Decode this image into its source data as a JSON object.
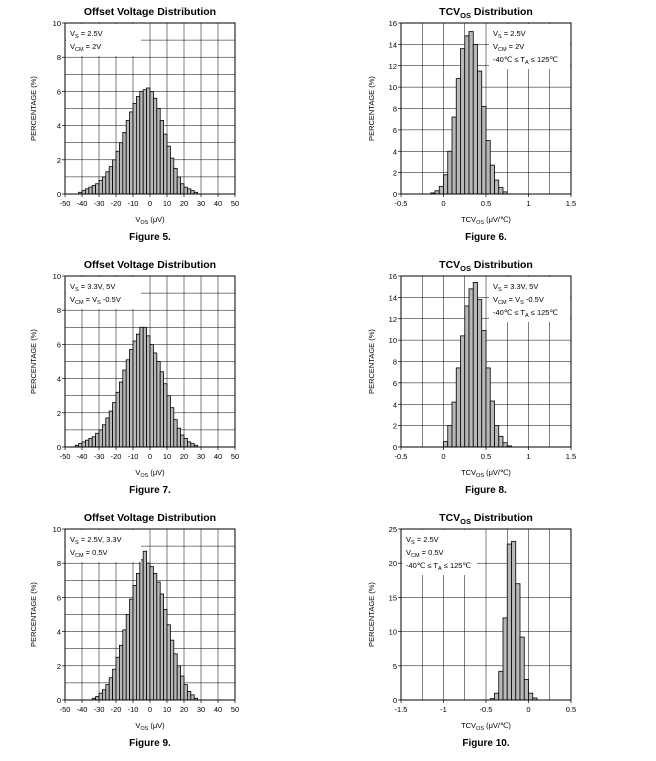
{
  "chart_data": [
    {
      "type": "bar",
      "title": "Offset Voltage Distribution",
      "title_sub": "",
      "figure": "Figure 5.",
      "xlabel": "V",
      "xlabel_sub": "OS",
      "xlabel_unit": " (μV)",
      "ylabel": "PERCENTAGE (%)",
      "xlim": [
        -50,
        50
      ],
      "ylim": [
        0,
        10
      ],
      "xticks": [
        -50,
        -40,
        -30,
        -20,
        -10,
        0,
        10,
        20,
        30,
        40,
        50
      ],
      "xtick_labels": [
        "-50",
        "-40",
        "-30",
        "-20",
        "-10",
        "0",
        "10",
        "20",
        "30",
        "40",
        "50"
      ],
      "yticks": [
        0,
        2,
        4,
        6,
        8,
        10
      ],
      "ytick_labels": [
        "0",
        "2",
        "4",
        "6",
        "8",
        "10"
      ],
      "grid_x_step": 10,
      "grid_y_step": 1,
      "bin_start": -42,
      "bin_width": 2,
      "values": [
        0.1,
        0.2,
        0.3,
        0.4,
        0.5,
        0.6,
        0.8,
        1.0,
        1.3,
        1.6,
        2.0,
        2.5,
        3.0,
        3.6,
        4.3,
        4.8,
        5.3,
        5.7,
        6.0,
        6.1,
        6.2,
        6.0,
        5.6,
        5.0,
        4.3,
        3.5,
        2.8,
        2.1,
        1.5,
        1.0,
        0.6,
        0.4,
        0.3,
        0.2,
        0.1
      ],
      "legend_position": "top-left",
      "legend": [
        {
          "main": "V",
          "sub": "S",
          "rest": " = 2.5V"
        },
        {
          "main": "V",
          "sub": "CM",
          "rest": " = 2V"
        }
      ]
    },
    {
      "type": "bar",
      "title": "TCV",
      "title_sub": "OS",
      "title_rest": " Distribution",
      "figure": "Figure 6.",
      "xlabel": "TCV",
      "xlabel_sub": "OS",
      "xlabel_unit": " (μV/℃)",
      "ylabel": "PERCENTAGE (%)",
      "xlim": [
        -0.5,
        1.5
      ],
      "ylim": [
        0,
        16
      ],
      "xticks": [
        -0.5,
        0,
        0.5,
        1,
        1.5
      ],
      "xtick_labels": [
        "-0.5",
        "0",
        "0.5",
        "1",
        "1.5"
      ],
      "yticks": [
        0,
        2,
        4,
        6,
        8,
        10,
        12,
        14,
        16
      ],
      "ytick_labels": [
        "0",
        "2",
        "4",
        "6",
        "8",
        "10",
        "12",
        "14",
        "16"
      ],
      "grid_x_step": 0.25,
      "grid_y_step": 2,
      "bin_start": -0.15,
      "bin_width": 0.05,
      "values": [
        0.1,
        0.3,
        0.7,
        1.8,
        4.0,
        7.2,
        10.8,
        13.6,
        14.8,
        15.2,
        14.0,
        11.5,
        8.2,
        5.0,
        2.7,
        1.3,
        0.6,
        0.2
      ],
      "legend_position": "top-right",
      "legend": [
        {
          "main": "V",
          "sub": "S",
          "rest": " = 2.5V"
        },
        {
          "main": "V",
          "sub": "CM",
          "rest": " = 2V"
        },
        {
          "main": "-40℃ ≤ T",
          "sub": "A",
          "rest": " ≤ 125℃"
        }
      ]
    },
    {
      "type": "bar",
      "title": "Offset Voltage Distribution",
      "title_sub": "",
      "figure": "Figure 7.",
      "xlabel": "V",
      "xlabel_sub": "OS",
      "xlabel_unit": " (μV)",
      "ylabel": "PERCENTAGE (%)",
      "xlim": [
        -50,
        50
      ],
      "ylim": [
        0,
        10
      ],
      "xticks": [
        -50,
        -40,
        -30,
        -20,
        -10,
        0,
        10,
        20,
        30,
        40,
        50
      ],
      "xtick_labels": [
        "-50",
        "-40",
        "-30",
        "-20",
        "-10",
        "0",
        "10",
        "20",
        "30",
        "40",
        "50"
      ],
      "yticks": [
        0,
        2,
        4,
        6,
        8,
        10
      ],
      "ytick_labels": [
        "0",
        "2",
        "4",
        "6",
        "8",
        "10"
      ],
      "grid_x_step": 10,
      "grid_y_step": 1,
      "bin_start": -44,
      "bin_width": 2,
      "values": [
        0.1,
        0.2,
        0.3,
        0.4,
        0.5,
        0.6,
        0.8,
        1.0,
        1.3,
        1.7,
        2.1,
        2.6,
        3.2,
        3.8,
        4.5,
        5.1,
        5.7,
        6.2,
        6.6,
        7.0,
        7.0,
        6.5,
        6.0,
        5.5,
        5.0,
        4.4,
        3.7,
        3.0,
        2.3,
        1.6,
        1.1,
        0.7,
        0.5,
        0.3,
        0.2,
        0.1
      ],
      "legend_position": "top-left",
      "legend": [
        {
          "main": "V",
          "sub": "S",
          "rest": " = 3.3V, 5V"
        },
        {
          "main": "V",
          "sub": "CM",
          "rest": " = V",
          "sub2": "S",
          "rest2": " -0.5V"
        }
      ]
    },
    {
      "type": "bar",
      "title": "TCV",
      "title_sub": "OS",
      "title_rest": " Distribution",
      "figure": "Figure 8.",
      "xlabel": "TCV",
      "xlabel_sub": "OS",
      "xlabel_unit": " (μV/℃)",
      "ylabel": "PERCENTAGE (%)",
      "xlim": [
        -0.5,
        1.5
      ],
      "ylim": [
        0,
        16
      ],
      "xticks": [
        -0.5,
        0,
        0.5,
        1,
        1.5
      ],
      "xtick_labels": [
        "-0.5",
        "0",
        "0.5",
        "1",
        "1.5"
      ],
      "yticks": [
        0,
        2,
        4,
        6,
        8,
        10,
        12,
        14,
        16
      ],
      "ytick_labels": [
        "0",
        "2",
        "4",
        "6",
        "8",
        "10",
        "12",
        "14",
        "16"
      ],
      "grid_x_step": 0.25,
      "grid_y_step": 2,
      "bin_start": 0,
      "bin_width": 0.05,
      "values": [
        0.5,
        2.0,
        4.2,
        7.4,
        10.4,
        13.2,
        14.8,
        15.4,
        13.8,
        10.9,
        7.4,
        4.3,
        2.0,
        1.0,
        0.4,
        0.1
      ],
      "legend_position": "top-right",
      "legend": [
        {
          "main": "V",
          "sub": "S",
          "rest": " = 3.3V, 5V"
        },
        {
          "main": "V",
          "sub": "CM",
          "rest": " = V",
          "sub2": "S",
          "rest2": " -0.5V"
        },
        {
          "main": "-40℃ ≤ T",
          "sub": "A",
          "rest": " ≤ 125℃"
        }
      ]
    },
    {
      "type": "bar",
      "title": "Offset Voltage Distribution",
      "title_sub": "",
      "figure": "Figure 9.",
      "xlabel": "V",
      "xlabel_sub": "OS",
      "xlabel_unit": " (μV)",
      "ylabel": "PERCENTAGE (%)",
      "xlim": [
        -50,
        50
      ],
      "ylim": [
        0,
        10
      ],
      "xticks": [
        -50,
        -40,
        -30,
        -20,
        -10,
        0,
        10,
        20,
        30,
        40,
        50
      ],
      "xtick_labels": [
        "-50",
        "-40",
        "-30",
        "-20",
        "-10",
        "0",
        "10",
        "20",
        "30",
        "40",
        "50"
      ],
      "yticks": [
        0,
        2,
        4,
        6,
        8,
        10
      ],
      "ytick_labels": [
        "0",
        "2",
        "4",
        "6",
        "8",
        "10"
      ],
      "grid_x_step": 10,
      "grid_y_step": 1,
      "bin_start": -34,
      "bin_width": 2,
      "values": [
        0.1,
        0.2,
        0.4,
        0.6,
        0.9,
        1.3,
        1.8,
        2.5,
        3.2,
        4.1,
        5.0,
        5.9,
        6.7,
        7.4,
        8.2,
        8.7,
        8.0,
        7.8,
        7.4,
        6.9,
        6.2,
        5.3,
        4.4,
        3.5,
        2.7,
        2.0,
        1.4,
        0.9,
        0.5,
        0.3,
        0.1
      ],
      "legend_position": "top-left",
      "legend": [
        {
          "main": "V",
          "sub": "S",
          "rest": " = 2.5V, 3.3V"
        },
        {
          "main": "V",
          "sub": "CM",
          "rest": " = 0.5V"
        }
      ]
    },
    {
      "type": "bar",
      "title": "TCV",
      "title_sub": "OS",
      "title_rest": " Distribution",
      "figure": "Figure 10.",
      "xlabel": "TCV",
      "xlabel_sub": "OS",
      "xlabel_unit": " (μV/℃)",
      "ylabel": "PERCENTAGE (%)",
      "xlim": [
        -1.5,
        0.5
      ],
      "ylim": [
        0,
        25
      ],
      "xticks": [
        -1.5,
        -1,
        -0.5,
        0,
        0.5
      ],
      "xtick_labels": [
        "-1.5",
        "-1",
        "-0.5",
        "0",
        "0.5"
      ],
      "yticks": [
        0,
        5,
        10,
        15,
        20,
        25
      ],
      "ytick_labels": [
        "0",
        "5",
        "10",
        "15",
        "20",
        "25"
      ],
      "grid_x_step": 0.25,
      "grid_y_step": 5,
      "bin_start": -0.45,
      "bin_width": 0.05,
      "values": [
        0.2,
        1.0,
        4.2,
        12.0,
        22.8,
        23.2,
        17.0,
        9.2,
        3.0,
        1.0,
        0.3
      ],
      "legend_position": "top-left",
      "legend": [
        {
          "main": "V",
          "sub": "S",
          "rest": " = 2.5V"
        },
        {
          "main": "V",
          "sub": "CM",
          "rest": " = 0.5V"
        },
        {
          "main": "-40℃ ≤ T",
          "sub": "A",
          "rest": " ≤ 125℃"
        }
      ]
    }
  ],
  "colors": {
    "bar_fill": "#b8b8b8",
    "bar_stroke": "#000000",
    "grid": "#000000",
    "background": "#ffffff"
  }
}
